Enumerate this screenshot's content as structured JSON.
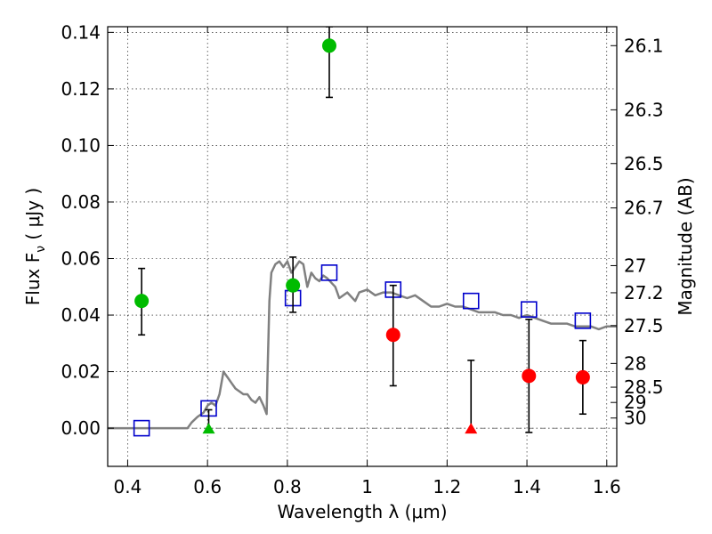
{
  "chart_data": {
    "type": "scatter",
    "xlabel": "Wavelength  λ (μm)",
    "ylabel": "Flux  F",
    "ylabel_sub": "ν",
    "ylabel_unit": "  ( μJy )",
    "ylabel_right": "Magnitude (AB)",
    "xlim": [
      0.35,
      1.625
    ],
    "ylim": [
      -0.0135,
      0.142
    ],
    "grid": true,
    "x_ticks": [
      0.4,
      0.6,
      0.8,
      1.0,
      1.2,
      1.4,
      1.6
    ],
    "x_tick_labels": [
      "0.4",
      "0.6",
      "0.8",
      "1",
      "1.2",
      "1.4",
      "1.6"
    ],
    "y_ticks": [
      0.0,
      0.02,
      0.04,
      0.06,
      0.08,
      0.1,
      0.12,
      0.14
    ],
    "y_tick_labels": [
      "0.00",
      "0.02",
      "0.04",
      "0.06",
      "0.08",
      "0.10",
      "0.12",
      "0.14"
    ],
    "right_ticks": [
      {
        "flux": 0.1353,
        "label": "26.1"
      },
      {
        "flux": 0.1126,
        "label": "26.3"
      },
      {
        "flux": 0.0936,
        "label": "26.5"
      },
      {
        "flux": 0.0779,
        "label": "26.7"
      },
      {
        "flux": 0.0575,
        "label": "27"
      },
      {
        "flux": 0.0479,
        "label": "27.2"
      },
      {
        "flux": 0.0363,
        "label": "27.5"
      },
      {
        "flux": 0.0229,
        "label": "28"
      },
      {
        "flux": 0.0145,
        "label": "28.5"
      },
      {
        "flux": 0.0091,
        "label": "29"
      },
      {
        "flux": 0.0036,
        "label": "30"
      }
    ],
    "series": [
      {
        "kind": "line",
        "color": "#808080",
        "points": [
          [
            0.35,
            0.0
          ],
          [
            0.55,
            0.0
          ],
          [
            0.56,
            0.002
          ],
          [
            0.575,
            0.004
          ],
          [
            0.59,
            0.0055
          ],
          [
            0.6,
            0.008
          ],
          [
            0.61,
            0.009
          ],
          [
            0.62,
            0.008
          ],
          [
            0.63,
            0.012
          ],
          [
            0.64,
            0.02
          ],
          [
            0.65,
            0.018
          ],
          [
            0.66,
            0.016
          ],
          [
            0.67,
            0.014
          ],
          [
            0.68,
            0.013
          ],
          [
            0.69,
            0.012
          ],
          [
            0.7,
            0.012
          ],
          [
            0.71,
            0.01
          ],
          [
            0.72,
            0.009
          ],
          [
            0.73,
            0.011
          ],
          [
            0.74,
            0.008
          ],
          [
            0.748,
            0.005
          ],
          [
            0.75,
            0.018
          ],
          [
            0.755,
            0.045
          ],
          [
            0.76,
            0.055
          ],
          [
            0.77,
            0.058
          ],
          [
            0.78,
            0.059
          ],
          [
            0.79,
            0.057
          ],
          [
            0.8,
            0.059
          ],
          [
            0.81,
            0.055
          ],
          [
            0.82,
            0.057
          ],
          [
            0.83,
            0.059
          ],
          [
            0.84,
            0.058
          ],
          [
            0.85,
            0.05
          ],
          [
            0.86,
            0.055
          ],
          [
            0.87,
            0.053
          ],
          [
            0.88,
            0.052
          ],
          [
            0.89,
            0.054
          ],
          [
            0.9,
            0.053
          ],
          [
            0.92,
            0.05
          ],
          [
            0.93,
            0.046
          ],
          [
            0.95,
            0.048
          ],
          [
            0.97,
            0.045
          ],
          [
            0.98,
            0.048
          ],
          [
            1.0,
            0.049
          ],
          [
            1.02,
            0.047
          ],
          [
            1.04,
            0.048
          ],
          [
            1.06,
            0.048
          ],
          [
            1.08,
            0.047
          ],
          [
            1.1,
            0.046
          ],
          [
            1.12,
            0.047
          ],
          [
            1.14,
            0.045
          ],
          [
            1.16,
            0.043
          ],
          [
            1.18,
            0.043
          ],
          [
            1.2,
            0.044
          ],
          [
            1.22,
            0.043
          ],
          [
            1.24,
            0.043
          ],
          [
            1.26,
            0.042
          ],
          [
            1.28,
            0.041
          ],
          [
            1.3,
            0.041
          ],
          [
            1.32,
            0.041
          ],
          [
            1.34,
            0.04
          ],
          [
            1.36,
            0.04
          ],
          [
            1.38,
            0.039
          ],
          [
            1.4,
            0.04
          ],
          [
            1.42,
            0.039
          ],
          [
            1.44,
            0.038
          ],
          [
            1.46,
            0.037
          ],
          [
            1.48,
            0.037
          ],
          [
            1.5,
            0.037
          ],
          [
            1.52,
            0.036
          ],
          [
            1.54,
            0.036
          ],
          [
            1.56,
            0.036
          ],
          [
            1.58,
            0.035
          ],
          [
            1.6,
            0.036
          ],
          [
            1.625,
            0.036
          ]
        ]
      },
      {
        "kind": "squares",
        "color": "#0000cc",
        "points": [
          [
            0.435,
            0.0
          ],
          [
            0.603,
            0.007
          ],
          [
            0.814,
            0.046
          ],
          [
            0.905,
            0.055
          ],
          [
            1.065,
            0.049
          ],
          [
            1.26,
            0.045
          ],
          [
            1.405,
            0.042
          ],
          [
            1.54,
            0.038
          ]
        ]
      },
      {
        "kind": "points",
        "color": "#00bb00",
        "points": [
          {
            "x": 0.435,
            "y": 0.045,
            "err_lo": 0.033,
            "err_hi": 0.0565
          },
          {
            "x": 0.814,
            "y": 0.0505,
            "err_lo": 0.041,
            "err_hi": 0.0605
          },
          {
            "x": 0.905,
            "y": 0.1353,
            "err_lo": 0.117,
            "err_hi": 0.142
          }
        ]
      },
      {
        "kind": "points",
        "color": "#ff0000",
        "points": [
          {
            "x": 1.065,
            "y": 0.033,
            "err_lo": 0.015,
            "err_hi": 0.0505
          },
          {
            "x": 1.405,
            "y": 0.0185,
            "err_lo": -0.0015,
            "err_hi": 0.0385
          },
          {
            "x": 1.54,
            "y": 0.018,
            "err_lo": 0.005,
            "err_hi": 0.031
          }
        ]
      },
      {
        "kind": "upper_limits",
        "points": [
          {
            "x": 0.603,
            "y": 0.0,
            "err_hi": 0.0065,
            "color": "#00bb00"
          },
          {
            "x": 1.26,
            "y": 0.0,
            "err_hi": 0.024,
            "color": "#ff0000"
          }
        ]
      }
    ]
  }
}
